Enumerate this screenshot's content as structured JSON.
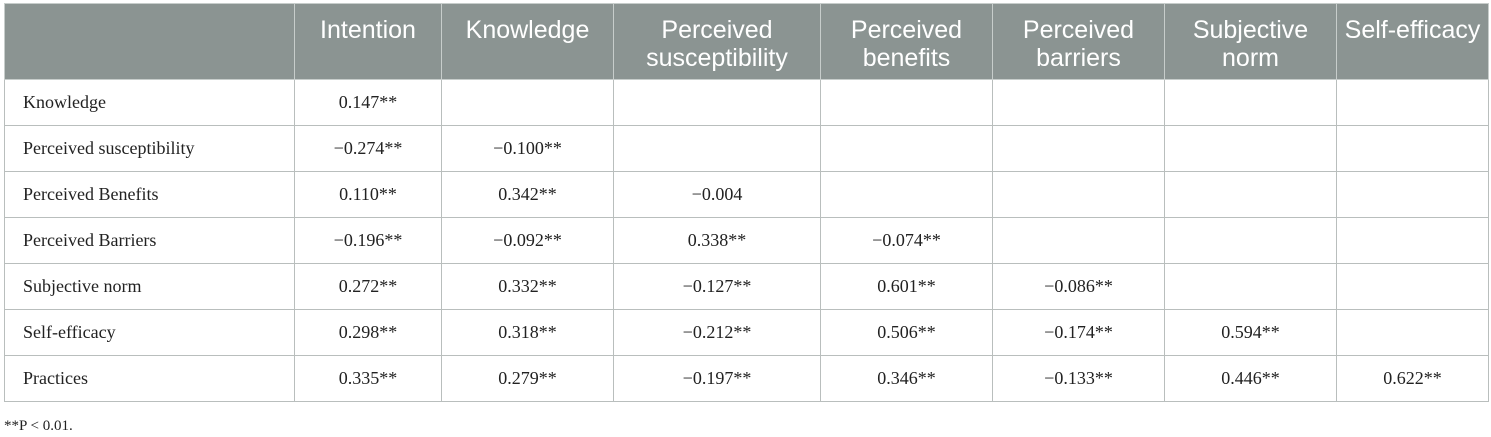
{
  "columns": [
    "",
    "Intention",
    "Knowledge",
    "Perceived susceptibility",
    "Perceived benefits",
    "Perceived barriers",
    "Subjective norm",
    "Self-efficacy"
  ],
  "rows": [
    {
      "label": "Knowledge",
      "values": [
        "0.147**",
        "",
        "",
        "",
        "",
        "",
        ""
      ]
    },
    {
      "label": "Perceived susceptibility",
      "values": [
        "−0.274**",
        "−0.100**",
        "",
        "",
        "",
        "",
        ""
      ]
    },
    {
      "label": "Perceived Benefits",
      "values": [
        "0.110**",
        "0.342**",
        "−0.004",
        "",
        "",
        "",
        ""
      ]
    },
    {
      "label": "Perceived Barriers",
      "values": [
        "−0.196**",
        "−0.092**",
        "0.338**",
        "−0.074**",
        "",
        "",
        ""
      ]
    },
    {
      "label": "Subjective norm",
      "values": [
        "0.272**",
        "0.332**",
        "−0.127**",
        "0.601**",
        "−0.086**",
        "",
        ""
      ]
    },
    {
      "label": "Self-efficacy",
      "values": [
        "0.298**",
        "0.318**",
        "−0.212**",
        "0.506**",
        "−0.174**",
        "0.594**",
        ""
      ]
    },
    {
      "label": "Practices",
      "values": [
        "0.335**",
        "0.279**",
        "−0.197**",
        "0.346**",
        "−0.133**",
        "0.446**",
        "0.622**"
      ]
    }
  ],
  "footnote": "**P < 0.01.",
  "colors": {
    "header_bg": "#8b9492",
    "header_text": "#ffffff",
    "border": "#b9bebd"
  }
}
